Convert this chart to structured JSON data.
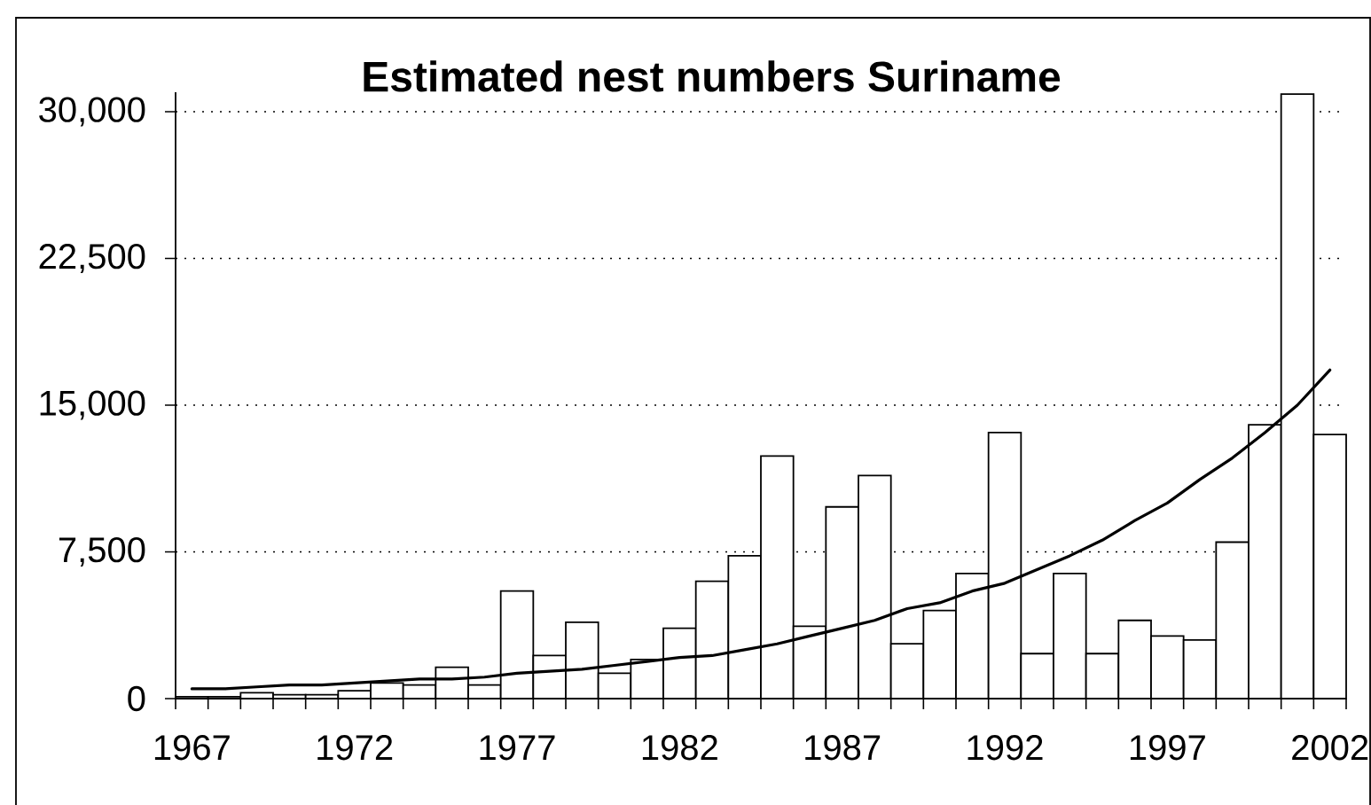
{
  "chart_data": {
    "type": "bar",
    "title": "Estimated nest numbers Suriname",
    "categories": [
      "1967",
      null,
      null,
      null,
      null,
      "1972",
      null,
      null,
      null,
      null,
      "1977",
      null,
      null,
      null,
      null,
      "1982",
      null,
      null,
      null,
      null,
      "1987",
      null,
      null,
      null,
      null,
      "1992",
      null,
      null,
      null,
      null,
      "1997",
      null,
      null,
      null,
      null,
      "2002"
    ],
    "series": [
      {
        "color": "#ffffff",
        "values": [
          100,
          100,
          300,
          200,
          200,
          400,
          800,
          700,
          1600,
          700,
          5500,
          2200,
          3900,
          1300,
          2000,
          3600,
          6000,
          7300,
          12400,
          3700,
          9800,
          11400,
          2800,
          4500,
          6400,
          13600,
          2300,
          6400,
          2300,
          4000,
          3200,
          3000,
          8000,
          14000,
          30900,
          13500
        ]
      },
      {
        "type": "line",
        "color": "#000000",
        "marker": "none",
        "values": [
          500,
          500,
          600,
          700,
          700,
          800,
          900,
          1000,
          1000,
          1100,
          1300,
          1400,
          1500,
          1700,
          1900,
          2100,
          2200,
          2500,
          2800,
          3200,
          3600,
          4000,
          4600,
          4900,
          5500,
          5900,
          6600,
          7300,
          8100,
          9100,
          10000,
          11200,
          12300,
          13600,
          15000,
          16800
        ]
      }
    ],
    "ylim": [
      0,
      31000
    ],
    "yticks": [
      0,
      {
        "value": 7500,
        "label": "7,500"
      },
      {
        "value": 15000,
        "label": "15,000"
      },
      {
        "value": 22500,
        "label": "22,500"
      },
      {
        "value": 30000,
        "label": "30,000"
      }
    ],
    "grid": "y"
  }
}
